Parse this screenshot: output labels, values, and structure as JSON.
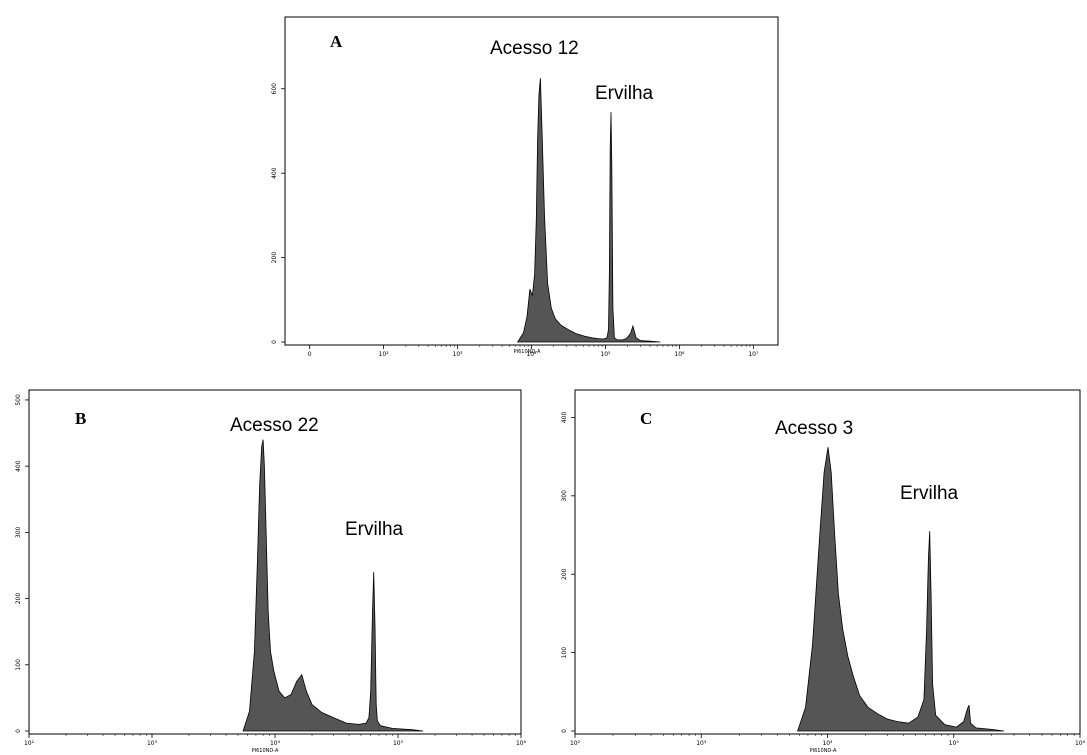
{
  "colors": {
    "fill": "#555555",
    "stroke": "#000000",
    "frame": "#000000",
    "background": "#ffffff"
  },
  "chart_data": [
    {
      "type": "area",
      "panel": "A",
      "xlabel": "PI610ND-A",
      "ylabel": "",
      "x_scale": "log",
      "x_ticks": [
        {
          "value": 0,
          "label": "0"
        },
        {
          "value": 100,
          "label": "10²"
        },
        {
          "value": 1000,
          "label": "10³"
        },
        {
          "value": 10000,
          "label": "10⁴"
        },
        {
          "value": 100000,
          "label": "10⁵"
        },
        {
          "value": 1000000,
          "label": "10⁶"
        },
        {
          "value": 10000000,
          "label": "10⁷"
        }
      ],
      "y_ticks": [
        {
          "value": 0,
          "label": "0"
        },
        {
          "value": 200,
          "label": "200"
        },
        {
          "value": 400,
          "label": "400"
        },
        {
          "value": 600,
          "label": "600"
        }
      ],
      "xlim": [
        0,
        10000000
      ],
      "ylim": [
        0,
        770
      ],
      "annotations": [
        {
          "text": "Acesso 12",
          "x": 13000,
          "y": 700
        },
        {
          "text": "Ervilha",
          "x": 130000,
          "y": 590
        }
      ],
      "series": [
        {
          "x": [
            6500,
            7800,
            8700,
            9500,
            10300,
            11000,
            11600,
            12100,
            12600,
            13200,
            14000,
            15000,
            16500,
            18500,
            21000,
            25000,
            31000,
            40000,
            52000,
            65000,
            80000,
            95000,
            105000,
            110000,
            113000,
            116000,
            119000,
            122000,
            126000,
            132000,
            145000,
            170000,
            190000,
            205000,
            220000,
            235000,
            260000,
            300000,
            400000,
            550000
          ],
          "y": [
            0,
            22,
            60,
            125,
            110,
            160,
            290,
            480,
            585,
            625,
            480,
            300,
            140,
            80,
            55,
            40,
            30,
            20,
            14,
            10,
            8,
            7,
            10,
            30,
            170,
            460,
            545,
            420,
            80,
            10,
            5,
            5,
            8,
            14,
            22,
            38,
            10,
            3,
            2,
            0
          ]
        }
      ]
    },
    {
      "type": "area",
      "panel": "B",
      "xlabel": "PI610ND-A",
      "ylabel": "",
      "x_scale": "log",
      "x_ticks": [
        {
          "value": 100,
          "label": "10²"
        },
        {
          "value": 1000,
          "label": "10³"
        },
        {
          "value": 10000,
          "label": "10⁴"
        },
        {
          "value": 100000,
          "label": "10⁵"
        },
        {
          "value": 1000000,
          "label": "10⁶"
        }
      ],
      "y_ticks": [
        {
          "value": 0,
          "label": "0"
        },
        {
          "value": 100,
          "label": "100"
        },
        {
          "value": 200,
          "label": "200"
        },
        {
          "value": 300,
          "label": "300"
        },
        {
          "value": 400,
          "label": "400"
        },
        {
          "value": 500,
          "label": "500"
        }
      ],
      "xlim": [
        100,
        1000000
      ],
      "ylim": [
        0,
        515
      ],
      "annotations": [
        {
          "text": "Acesso 22",
          "x": 8000,
          "y": 455
        },
        {
          "text": "Ervilha",
          "x": 55000,
          "y": 310
        }
      ],
      "series": [
        {
          "x": [
            5500,
            6200,
            6800,
            7200,
            7500,
            7800,
            8000,
            8200,
            8500,
            8800,
            9200,
            9800,
            10800,
            12000,
            13500,
            15000,
            16500,
            18000,
            20000,
            24000,
            30000,
            38000,
            48000,
            55000,
            58000,
            60000,
            62000,
            63500,
            65000,
            66500,
            68000,
            72000,
            90000,
            130000,
            160000
          ],
          "y": [
            0,
            30,
            120,
            260,
            370,
            430,
            440,
            400,
            290,
            180,
            120,
            90,
            60,
            50,
            55,
            75,
            85,
            60,
            40,
            28,
            20,
            12,
            10,
            12,
            20,
            60,
            180,
            240,
            160,
            40,
            15,
            8,
            4,
            2,
            0
          ]
        }
      ]
    },
    {
      "type": "area",
      "panel": "C",
      "xlabel": "PI610ND-A",
      "ylabel": "",
      "x_scale": "log",
      "x_ticks": [
        {
          "value": 100,
          "label": "10²"
        },
        {
          "value": 1000,
          "label": "10³"
        },
        {
          "value": 10000,
          "label": "10⁴"
        },
        {
          "value": 100000,
          "label": "10⁵"
        },
        {
          "value": 1000000,
          "label": "10⁶"
        }
      ],
      "y_ticks": [
        {
          "value": 0,
          "label": "0"
        },
        {
          "value": 100,
          "label": "100"
        },
        {
          "value": 200,
          "label": "200"
        },
        {
          "value": 300,
          "label": "300"
        },
        {
          "value": 400,
          "label": "400"
        }
      ],
      "xlim": [
        100,
        1000000
      ],
      "ylim": [
        0,
        435
      ],
      "annotations": [
        {
          "text": "Acesso 3",
          "x": 10000,
          "y": 390
        },
        {
          "text": "Ervilha",
          "x": 66000,
          "y": 325
        }
      ],
      "series": [
        {
          "x": [
            5800,
            6700,
            7600,
            8600,
            9400,
            10100,
            10700,
            11400,
            12200,
            13200,
            14500,
            16000,
            18000,
            21000,
            25000,
            30000,
            36000,
            44000,
            52000,
            58000,
            61000,
            63000,
            64500,
            66000,
            68000,
            72000,
            85000,
            105000,
            120000,
            128000,
            132000,
            136000,
            150000,
            200000,
            250000
          ],
          "y": [
            0,
            30,
            110,
            240,
            330,
            362,
            330,
            250,
            175,
            130,
            95,
            70,
            45,
            30,
            22,
            15,
            12,
            10,
            18,
            40,
            130,
            220,
            255,
            180,
            60,
            20,
            8,
            5,
            12,
            28,
            33,
            10,
            4,
            2,
            0
          ]
        }
      ]
    }
  ]
}
